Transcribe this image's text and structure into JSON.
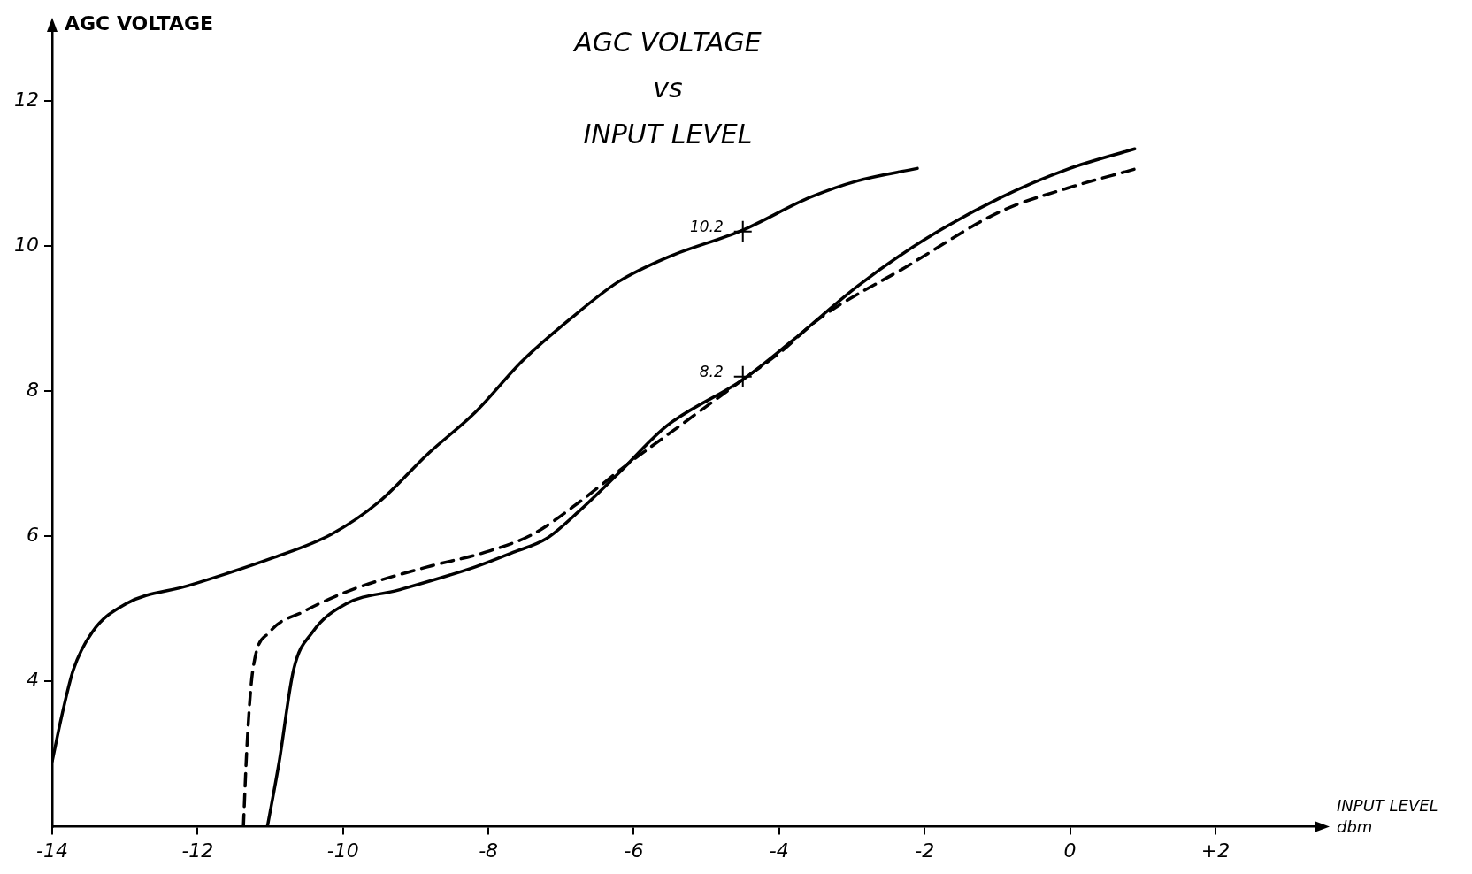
{
  "chart_data": {
    "type": "line",
    "title": "AGC VOLTAGE\nvs\nINPUT LEVEL",
    "xlabel": "INPUT LEVEL\ndbm",
    "ylabel": "AGC VOLTAGE",
    "xlim": [
      -14,
      3.4
    ],
    "ylim": [
      2,
      13
    ],
    "xticks": [
      {
        "value": -14,
        "label": "-14"
      },
      {
        "value": -12,
        "label": "-12"
      },
      {
        "value": -10,
        "label": "-10"
      },
      {
        "value": -8,
        "label": "-8"
      },
      {
        "value": -6,
        "label": "-6"
      },
      {
        "value": -4,
        "label": "-4"
      },
      {
        "value": -2,
        "label": "-2"
      },
      {
        "value": 0,
        "label": "0"
      },
      {
        "value": 2,
        "label": "+2"
      }
    ],
    "yticks": [
      4,
      6,
      8,
      10,
      12
    ],
    "grid": false,
    "legend": false,
    "series": [
      {
        "color": "#000000",
        "line_style": "solid",
        "x": [
          -14,
          -13.87,
          -13.71,
          -13.45,
          -12.99,
          -12.13,
          -10.95,
          -10.16,
          -9.5,
          -8.84,
          -8.18,
          -7.53,
          -6.87,
          -6.21,
          -5.55,
          -4.5,
          -3.58,
          -2.92,
          -2.1
        ],
        "values": [
          2.9,
          3.52,
          4.16,
          4.68,
          5.07,
          5.32,
          5.71,
          6.03,
          6.48,
          7.13,
          7.71,
          8.42,
          9.0,
          9.51,
          9.84,
          10.22,
          10.67,
          10.9,
          11.07
        ]
      },
      {
        "color": "#000000",
        "line_style": "solid",
        "x": [
          -11.04,
          -10.88,
          -10.68,
          -10.42,
          -9.96,
          -9.24,
          -8.18,
          -7.66,
          -7.2,
          -6.74,
          -6.21,
          -5.55,
          -4.5,
          -3.84,
          -2.92,
          -2.0,
          -0.95,
          -0.03,
          0.89
        ],
        "values": [
          2.0,
          2.88,
          4.16,
          4.68,
          5.07,
          5.26,
          5.58,
          5.78,
          5.97,
          6.36,
          6.87,
          7.52,
          8.16,
          8.68,
          9.45,
          10.09,
          10.67,
          11.06,
          11.34
        ]
      },
      {
        "color": "#000000",
        "line_style": "dashed",
        "x": [
          -11.37,
          -11.32,
          -11.24,
          -11.01,
          -10.55,
          -9.89,
          -8.84,
          -8.05,
          -7.39,
          -6.74,
          -6.08,
          -5.29,
          -4.5,
          -3.97,
          -3.45,
          -2.26,
          -0.95,
          -0.03,
          0.89
        ],
        "values": [
          2.0,
          3.13,
          4.16,
          4.68,
          4.96,
          5.26,
          5.58,
          5.78,
          6.03,
          6.48,
          7.0,
          7.58,
          8.16,
          8.55,
          9.0,
          9.71,
          10.48,
          10.8,
          11.06
        ]
      }
    ],
    "annotations": [
      {
        "text": "10.2",
        "x": -4.5,
        "y": 10.2
      },
      {
        "text": "8.2",
        "x": -4.5,
        "y": 8.2
      }
    ]
  }
}
